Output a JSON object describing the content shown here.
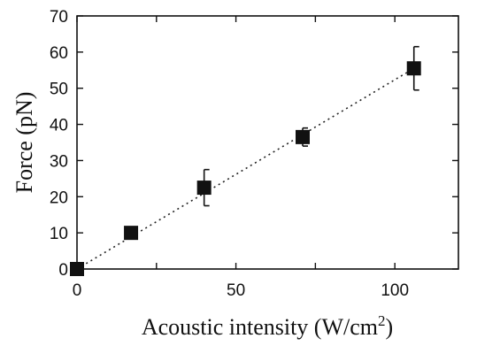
{
  "chart_data": {
    "type": "scatter",
    "xlabel": "Acoustic intensity (W/cm",
    "xlabel_sup": "2",
    "xlabel_end": ")",
    "ylabel": "Force (pN)",
    "xlim": [
      0,
      120
    ],
    "ylim": [
      0,
      70
    ],
    "xticks": [
      0,
      50,
      100
    ],
    "yticks": [
      0,
      10,
      20,
      30,
      40,
      50,
      60,
      70
    ],
    "grid": false,
    "points": [
      {
        "x": 0,
        "y": 0,
        "err": 0
      },
      {
        "x": 17,
        "y": 10,
        "err": 1
      },
      {
        "x": 40,
        "y": 22.5,
        "err": 5
      },
      {
        "x": 71,
        "y": 36.5,
        "err": 2.5
      },
      {
        "x": 106,
        "y": 55.5,
        "err": 6
      }
    ],
    "fit_line": {
      "style": "dotted",
      "from": [
        0,
        0
      ],
      "to": [
        106,
        55.5
      ]
    }
  }
}
